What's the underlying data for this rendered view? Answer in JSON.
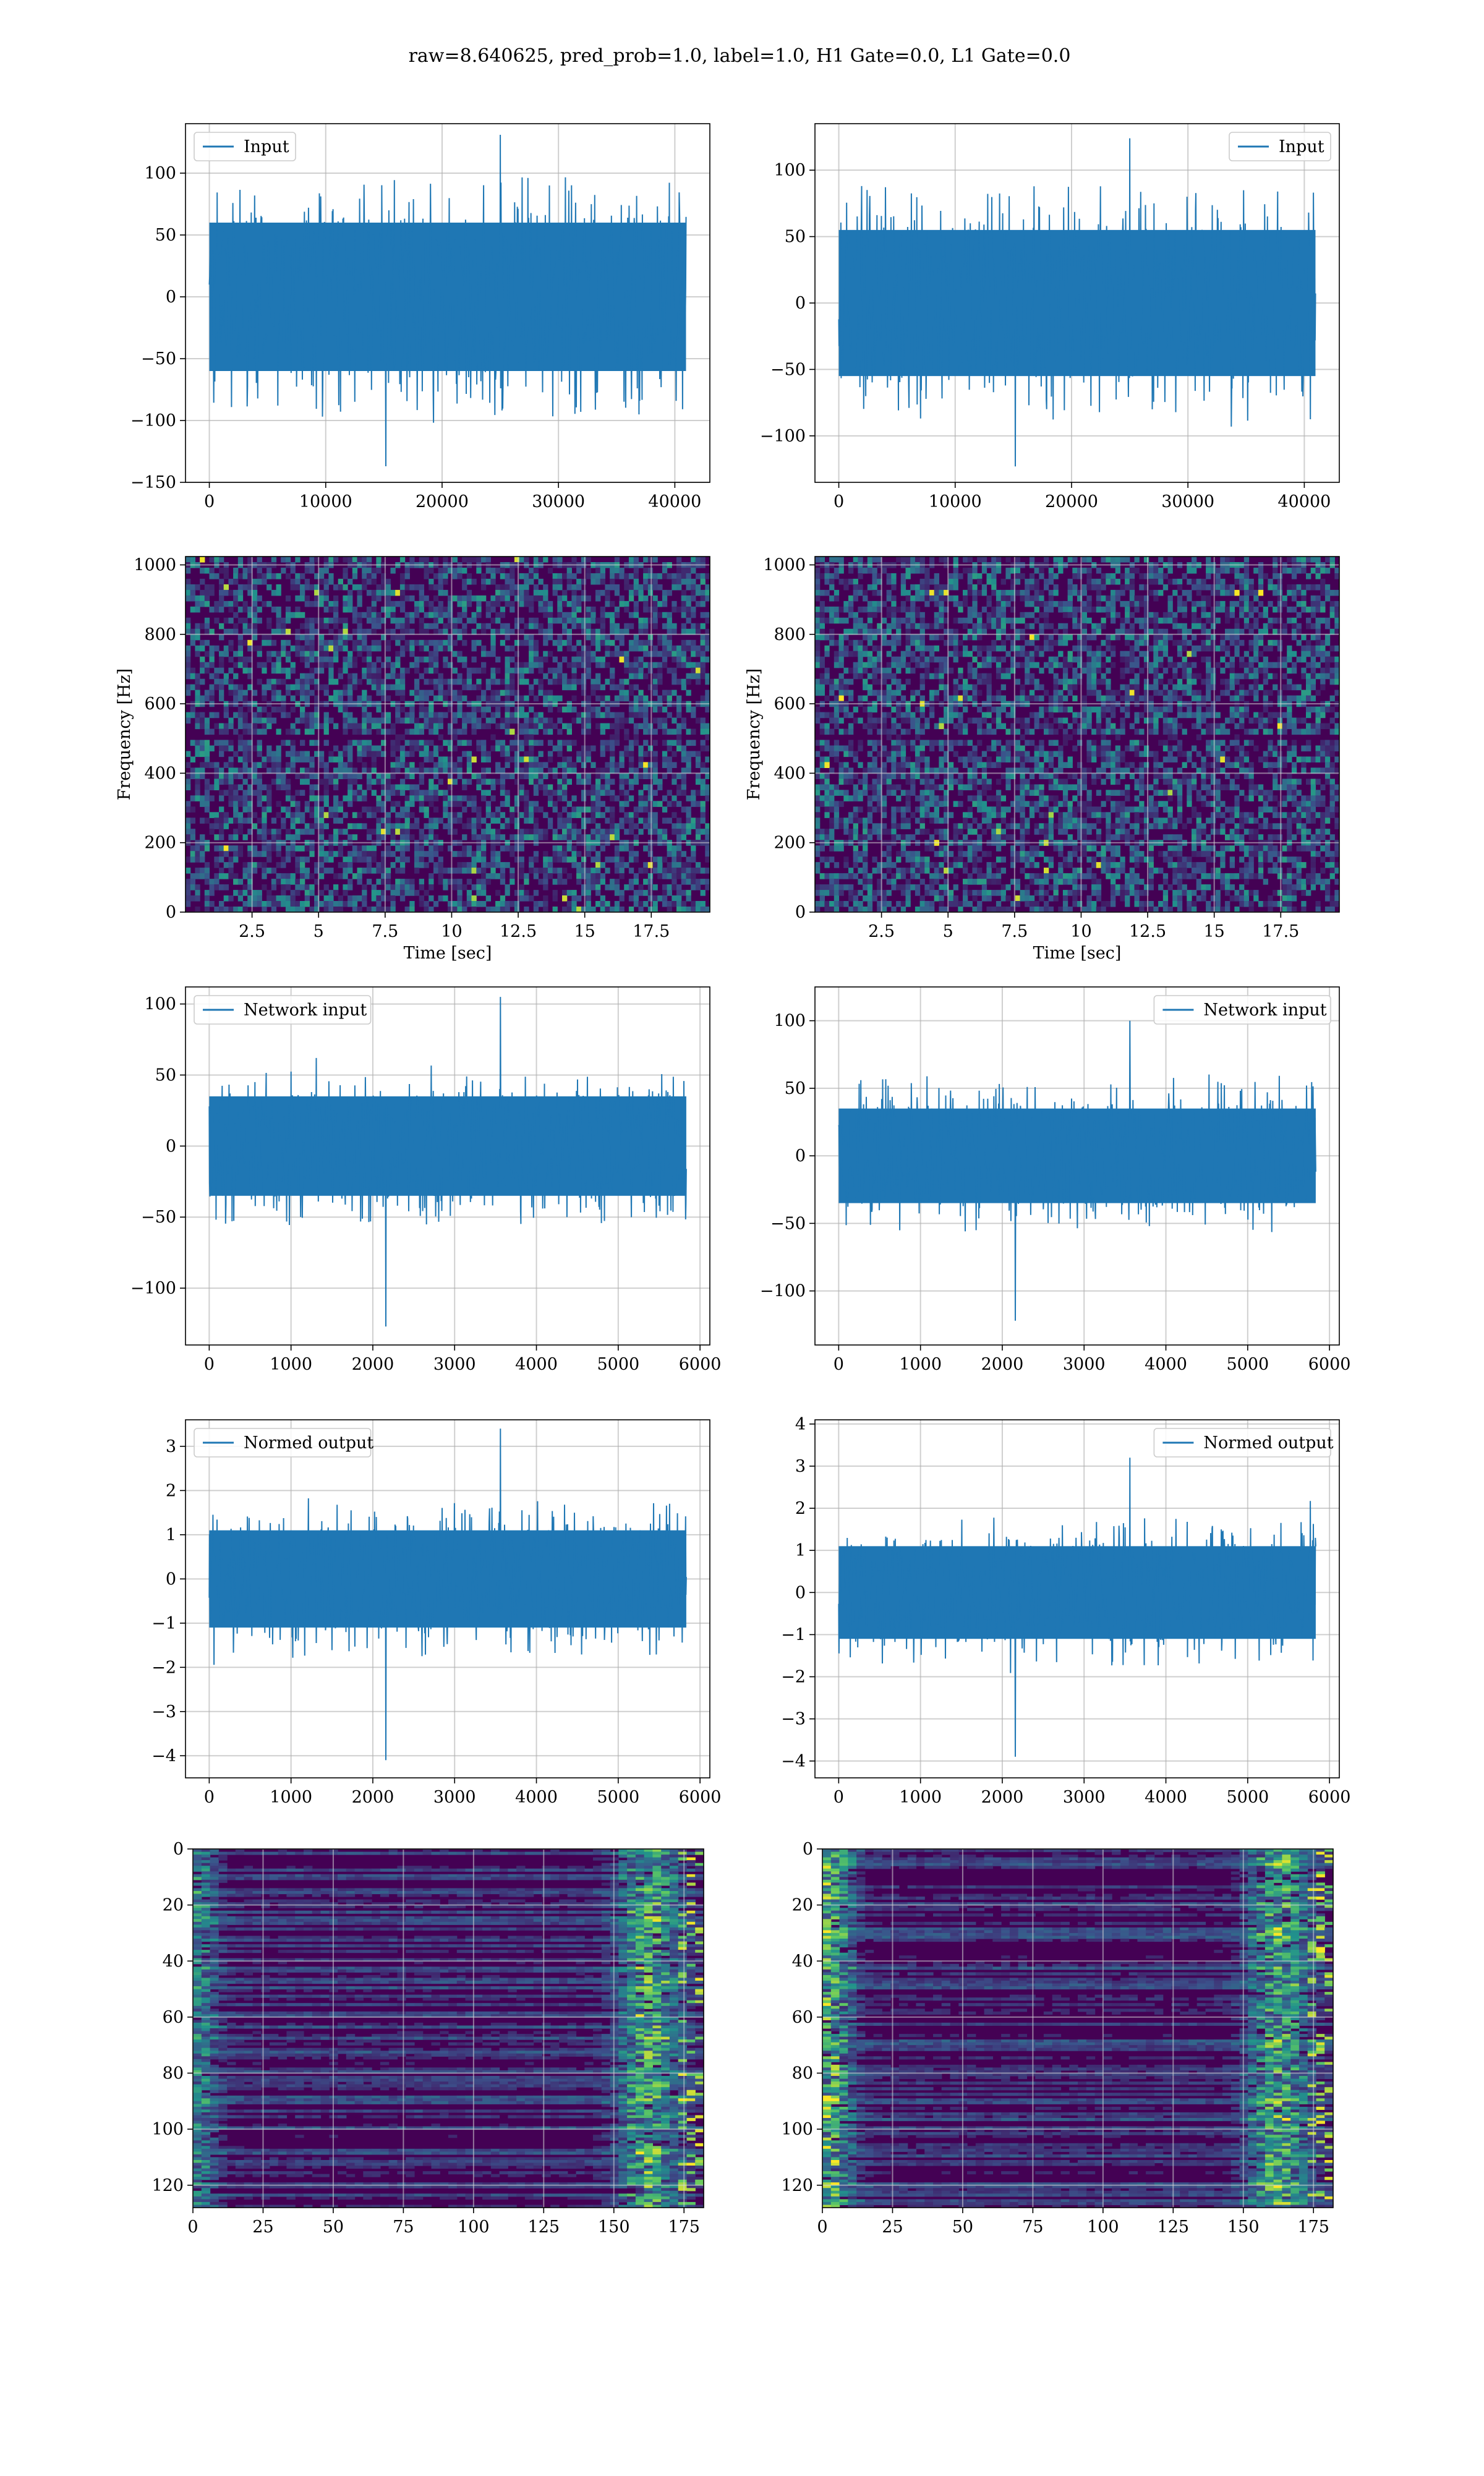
{
  "figure": {
    "title": "raw=8.640625, pred_prob=1.0, label=1.0, H1 Gate=0.0, L1 Gate=0.0"
  },
  "colors": {
    "line": "#1f77b4",
    "grid": "#b0b0b0",
    "viridis_dark": "#440154",
    "viridis_blue": "#3b528b",
    "viridis_teal": "#21918c",
    "viridis_green": "#5ec962",
    "viridis_yellow": "#fde725"
  },
  "chart_data": [
    {
      "id": "input-left",
      "type": "line",
      "legend": "Input",
      "legend_loc": "upper left",
      "xlim": [
        -2048,
        43008
      ],
      "ylim": [
        -150,
        140
      ],
      "xticks": [
        0,
        10000,
        20000,
        30000,
        40000
      ],
      "yticks": [
        -150,
        -100,
        -50,
        0,
        50,
        100
      ],
      "signal": {
        "x_start": 0,
        "x_end": 40960,
        "envelope_mid": [
          -60,
          60
        ],
        "peak_max": 131,
        "peak_min": -137
      },
      "xlabel": "",
      "ylabel": "",
      "grid": true
    },
    {
      "id": "input-right",
      "type": "line",
      "legend": "Input",
      "legend_loc": "upper right",
      "xlim": [
        -2048,
        43008
      ],
      "ylim": [
        -135,
        135
      ],
      "xticks": [
        0,
        10000,
        20000,
        30000,
        40000
      ],
      "yticks": [
        -100,
        -50,
        0,
        50,
        100
      ],
      "signal": {
        "x_start": 0,
        "x_end": 40960,
        "envelope_mid": [
          -55,
          55
        ],
        "peak_max": 124,
        "peak_min": -123
      },
      "xlabel": "",
      "ylabel": "",
      "grid": true
    },
    {
      "id": "spec-left",
      "type": "heatmap",
      "colormap": "viridis",
      "xlim": [
        0,
        19.7
      ],
      "ylim": [
        0,
        1024
      ],
      "xticks": [
        2.5,
        5.0,
        7.5,
        10.0,
        12.5,
        15.0,
        17.5
      ],
      "yticks": [
        0,
        200,
        400,
        600,
        800,
        1000
      ],
      "xlabel": "Time [sec]",
      "ylabel": "Frequency [Hz]",
      "grid": true
    },
    {
      "id": "spec-right",
      "type": "heatmap",
      "colormap": "viridis",
      "xlim": [
        0,
        19.7
      ],
      "ylim": [
        0,
        1024
      ],
      "xticks": [
        2.5,
        5.0,
        7.5,
        10.0,
        12.5,
        15.0,
        17.5
      ],
      "yticks": [
        0,
        200,
        400,
        600,
        800,
        1000
      ],
      "xlabel": "Time [sec]",
      "ylabel": "Frequency [Hz]",
      "grid": true
    },
    {
      "id": "netin-left",
      "type": "line",
      "legend": "Network input",
      "legend_loc": "upper left",
      "xlim": [
        -290,
        6120
      ],
      "ylim": [
        -140,
        112
      ],
      "xticks": [
        0,
        1000,
        2000,
        3000,
        4000,
        5000,
        6000
      ],
      "yticks": [
        -100,
        -50,
        0,
        50,
        100
      ],
      "signal": {
        "x_start": 0,
        "x_end": 5832,
        "envelope_mid": [
          -35,
          35
        ],
        "peak_max": 105,
        "peak_min": -127
      },
      "xlabel": "",
      "ylabel": "",
      "grid": true
    },
    {
      "id": "netin-right",
      "type": "line",
      "legend": "Network input",
      "legend_loc": "upper right",
      "xlim": [
        -290,
        6120
      ],
      "ylim": [
        -140,
        125
      ],
      "xticks": [
        0,
        1000,
        2000,
        3000,
        4000,
        5000,
        6000
      ],
      "yticks": [
        -100,
        -50,
        0,
        50,
        100
      ],
      "signal": {
        "x_start": 0,
        "x_end": 5832,
        "envelope_mid": [
          -35,
          35
        ],
        "peak_max": 100,
        "peak_min": -122
      },
      "xlabel": "",
      "ylabel": "",
      "grid": true
    },
    {
      "id": "normed-left",
      "type": "line",
      "legend": "Normed output",
      "legend_loc": "upper left",
      "xlim": [
        -290,
        6120
      ],
      "ylim": [
        -4.5,
        3.6
      ],
      "xticks": [
        0,
        1000,
        2000,
        3000,
        4000,
        5000,
        6000
      ],
      "yticks": [
        -4,
        -3,
        -2,
        -1,
        0,
        1,
        2,
        3
      ],
      "signal": {
        "x_start": 0,
        "x_end": 5832,
        "envelope_mid": [
          -1.1,
          1.1
        ],
        "peak_max": 3.4,
        "peak_min": -4.1
      },
      "xlabel": "",
      "ylabel": "",
      "grid": true
    },
    {
      "id": "normed-right",
      "type": "line",
      "legend": "Normed output",
      "legend_loc": "upper right",
      "xlim": [
        -290,
        6120
      ],
      "ylim": [
        -4.4,
        4.1
      ],
      "xticks": [
        0,
        1000,
        2000,
        3000,
        4000,
        5000,
        6000
      ],
      "yticks": [
        -4,
        -3,
        -2,
        -1,
        0,
        1,
        2,
        3,
        4
      ],
      "signal": {
        "x_start": 0,
        "x_end": 5832,
        "envelope_mid": [
          -1.1,
          1.1
        ],
        "peak_max": 3.2,
        "peak_min": -3.9
      },
      "xlabel": "",
      "ylabel": "",
      "grid": true
    },
    {
      "id": "feat-left",
      "type": "heatmap",
      "colormap": "viridis",
      "xlim": [
        0,
        182
      ],
      "ylim": [
        128,
        0
      ],
      "xticks": [
        0,
        25,
        50,
        75,
        100,
        125,
        150,
        175
      ],
      "yticks": [
        0,
        20,
        40,
        60,
        80,
        100,
        120
      ],
      "xlabel": "",
      "ylabel": "",
      "grid": true
    },
    {
      "id": "feat-right",
      "type": "heatmap",
      "colormap": "viridis",
      "xlim": [
        0,
        182
      ],
      "ylim": [
        128,
        0
      ],
      "xticks": [
        0,
        25,
        50,
        75,
        100,
        125,
        150,
        175
      ],
      "yticks": [
        0,
        20,
        40,
        60,
        80,
        100,
        120
      ],
      "xlabel": "",
      "ylabel": "",
      "grid": true
    }
  ]
}
